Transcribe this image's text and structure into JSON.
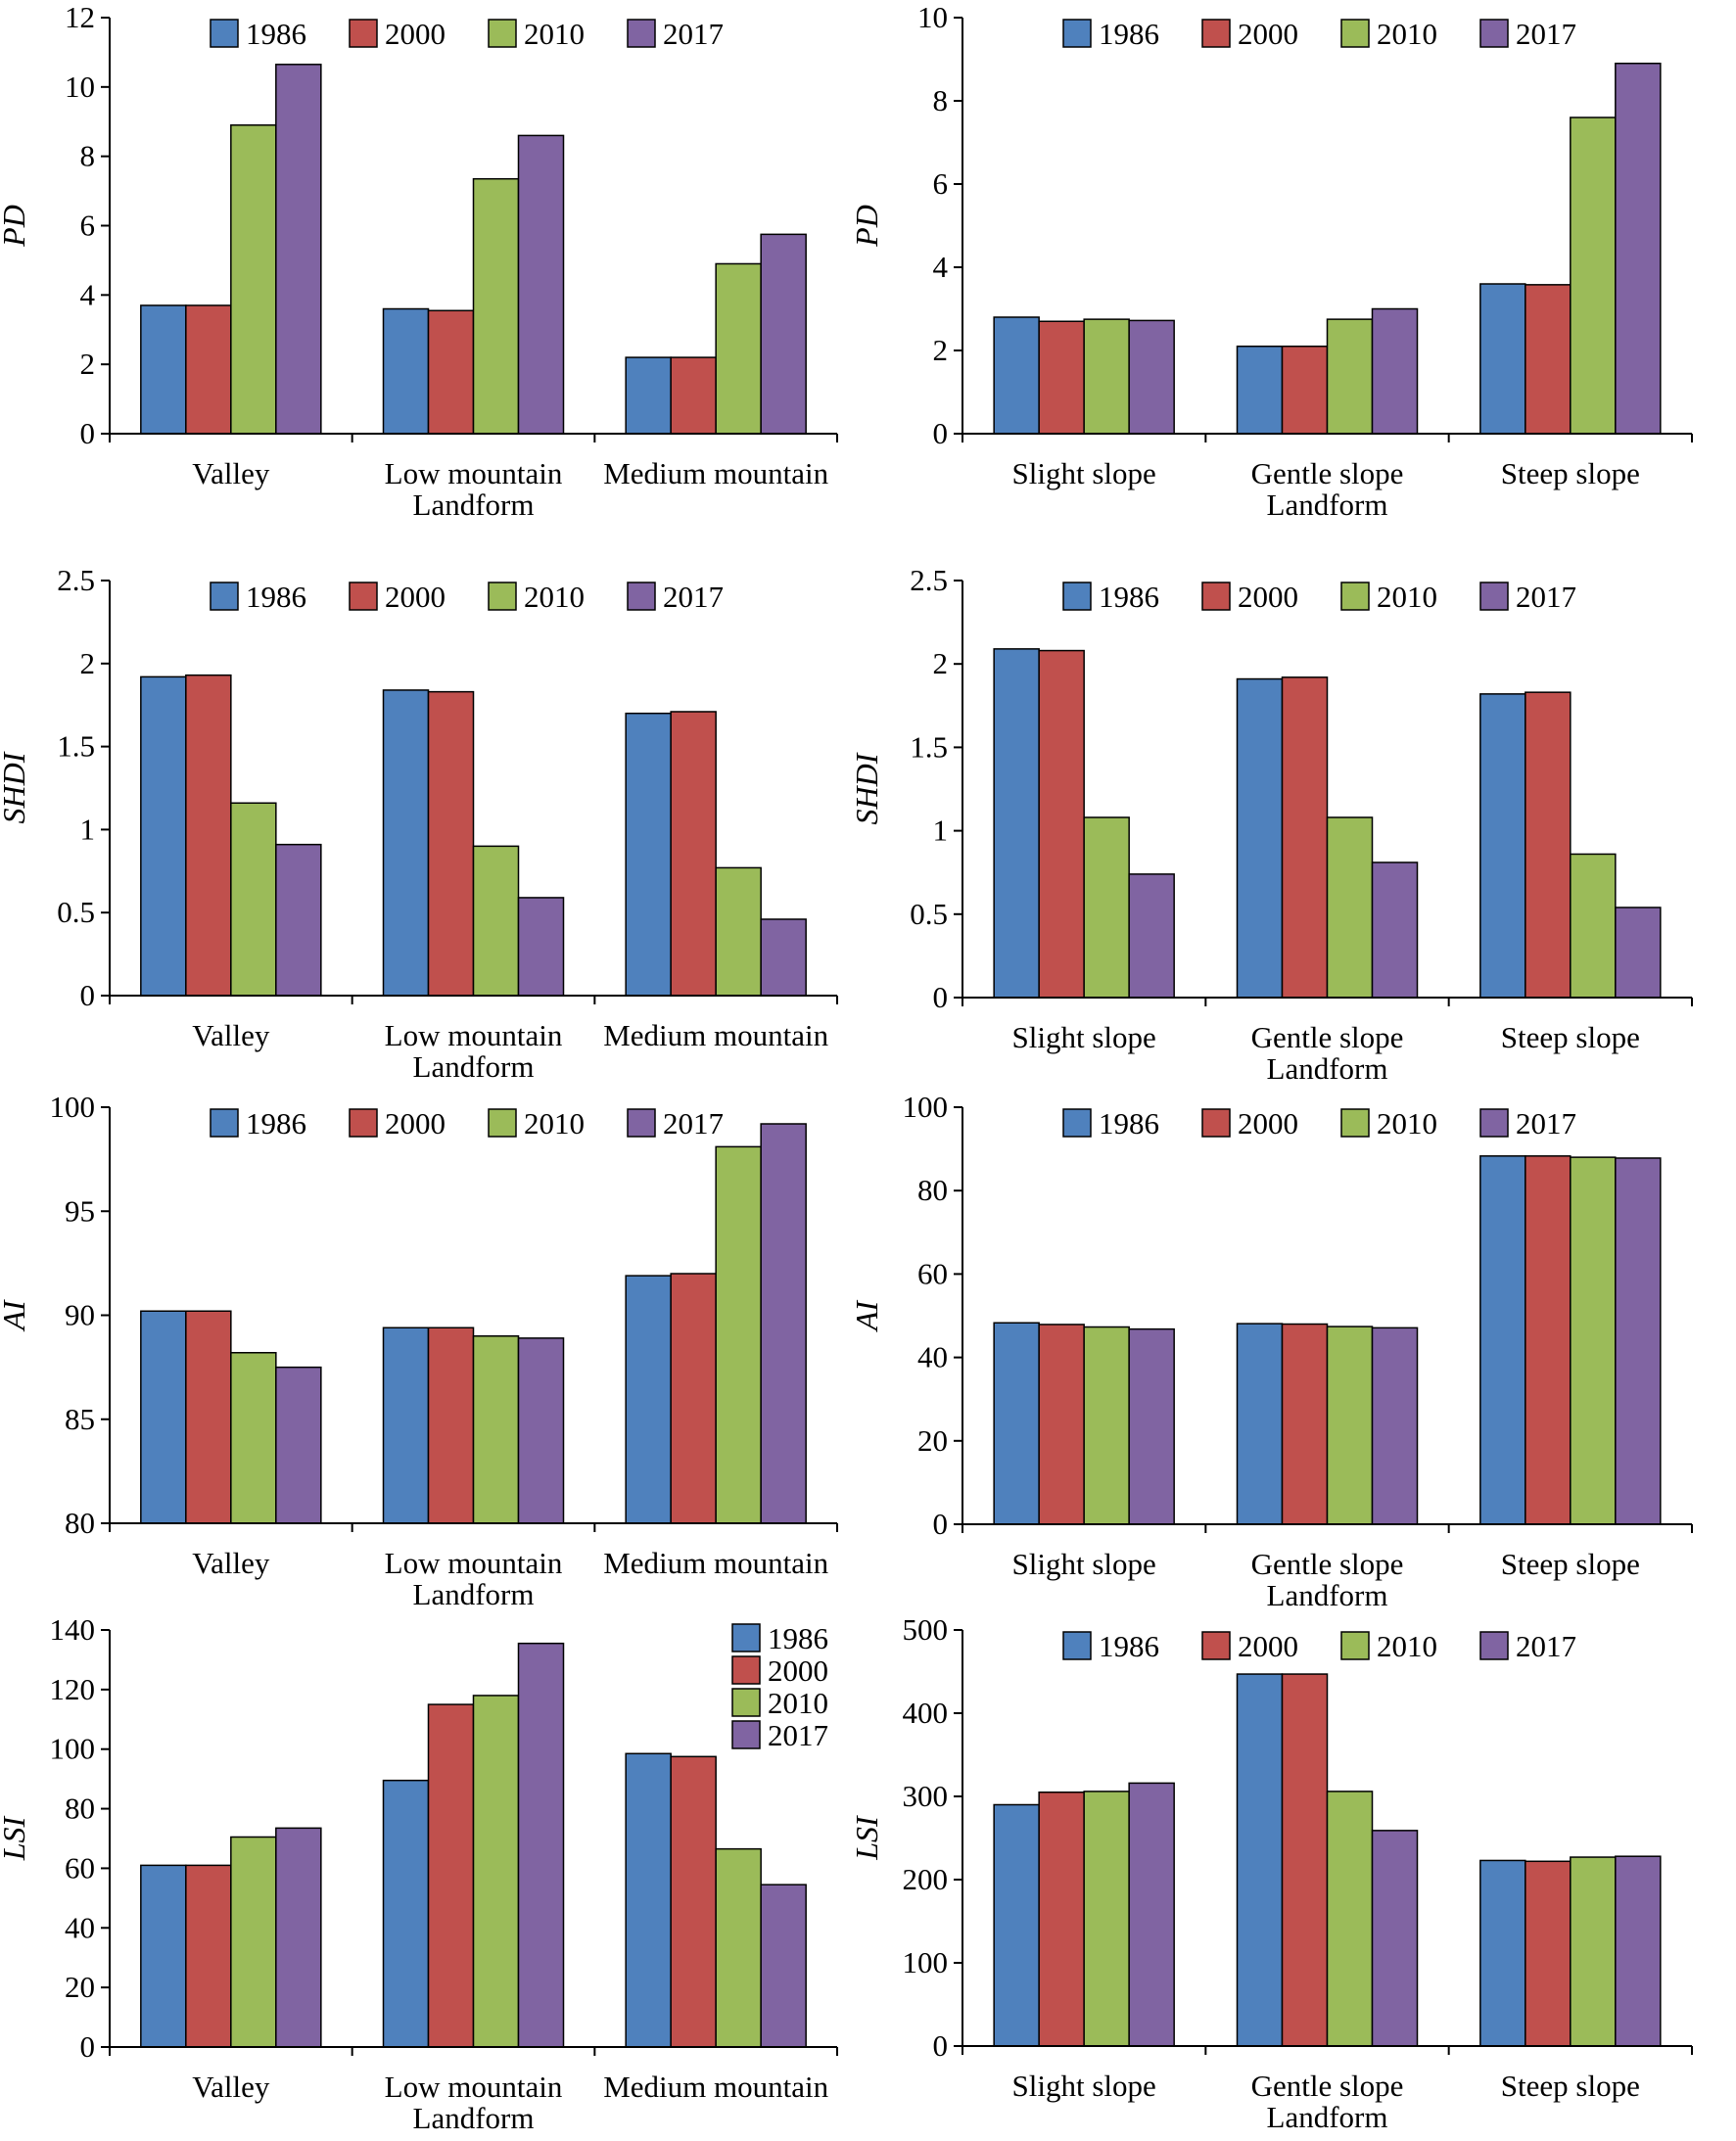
{
  "colors": [
    "#4F81BD",
    "#C0504D",
    "#9BBB59",
    "#8064A2"
  ],
  "chart_data": [
    {
      "type": "bar",
      "ylabel": "PD",
      "xlabel": "Landform",
      "categories": [
        "Valley",
        "Low mountain",
        "Medium mountain"
      ],
      "ylim": [
        0,
        12
      ],
      "yticks": [
        "0",
        "2",
        "4",
        "6",
        "8",
        "10",
        "12"
      ],
      "legend": "top",
      "series": [
        {
          "name": "1986",
          "values": [
            3.7,
            3.6,
            2.2
          ]
        },
        {
          "name": "2000",
          "values": [
            3.7,
            3.55,
            2.2
          ]
        },
        {
          "name": "2010",
          "values": [
            8.9,
            7.35,
            4.9
          ]
        },
        {
          "name": "2017",
          "values": [
            10.65,
            8.6,
            5.75
          ]
        }
      ]
    },
    {
      "type": "bar",
      "ylabel": "PD",
      "xlabel": "Landform",
      "categories": [
        "Slight slope",
        "Gentle slope",
        "Steep slope"
      ],
      "ylim": [
        0,
        10
      ],
      "yticks": [
        "0",
        "2",
        "4",
        "6",
        "8",
        "10"
      ],
      "legend": "top",
      "series": [
        {
          "name": "1986",
          "values": [
            2.8,
            2.1,
            3.6
          ]
        },
        {
          "name": "2000",
          "values": [
            2.7,
            2.1,
            3.58
          ]
        },
        {
          "name": "2010",
          "values": [
            2.75,
            2.75,
            7.6
          ]
        },
        {
          "name": "2017",
          "values": [
            2.72,
            3.0,
            8.9
          ]
        }
      ]
    },
    {
      "type": "bar",
      "ylabel": "SHDI",
      "xlabel": "Landform",
      "categories": [
        "Valley",
        "Low mountain",
        "Medium mountain"
      ],
      "ylim": [
        0,
        2.5
      ],
      "yticks": [
        "0",
        "0.5",
        "1",
        "1.5",
        "2",
        "2.5"
      ],
      "legend": "top",
      "series": [
        {
          "name": "1986",
          "values": [
            1.92,
            1.84,
            1.7
          ]
        },
        {
          "name": "2000",
          "values": [
            1.93,
            1.83,
            1.71
          ]
        },
        {
          "name": "2010",
          "values": [
            1.16,
            0.9,
            0.77
          ]
        },
        {
          "name": "2017",
          "values": [
            0.91,
            0.59,
            0.46
          ]
        }
      ]
    },
    {
      "type": "bar",
      "ylabel": "SHDI",
      "xlabel": "Landform",
      "categories": [
        "Slight slope",
        "Gentle slope",
        "Steep slope"
      ],
      "ylim": [
        0,
        2.5
      ],
      "yticks": [
        "0",
        "0.5",
        "1",
        "1.5",
        "2",
        "2.5"
      ],
      "legend": "top",
      "series": [
        {
          "name": "1986",
          "values": [
            2.09,
            1.91,
            1.82
          ]
        },
        {
          "name": "2000",
          "values": [
            2.08,
            1.92,
            1.83
          ]
        },
        {
          "name": "2010",
          "values": [
            1.08,
            1.08,
            0.86
          ]
        },
        {
          "name": "2017",
          "values": [
            0.74,
            0.81,
            0.54
          ]
        }
      ]
    },
    {
      "type": "bar",
      "ylabel": "AI",
      "xlabel": "Landform",
      "categories": [
        "Valley",
        "Low mountain",
        "Medium mountain"
      ],
      "ylim": [
        80,
        100
      ],
      "yticks": [
        "80",
        "85",
        "90",
        "95",
        "100"
      ],
      "legend": "top",
      "series": [
        {
          "name": "1986",
          "values": [
            90.2,
            89.4,
            91.9
          ]
        },
        {
          "name": "2000",
          "values": [
            90.2,
            89.4,
            92.0
          ]
        },
        {
          "name": "2010",
          "values": [
            88.2,
            89.0,
            98.1
          ]
        },
        {
          "name": "2017",
          "values": [
            87.5,
            88.9,
            99.2
          ]
        }
      ]
    },
    {
      "type": "bar",
      "ylabel": "AI",
      "xlabel": "Landform",
      "categories": [
        "Slight slope",
        "Gentle slope",
        "Steep slope"
      ],
      "ylim": [
        0,
        100
      ],
      "yticks": [
        "0",
        "20",
        "40",
        "60",
        "80",
        "100"
      ],
      "legend": "top",
      "series": [
        {
          "name": "1986",
          "values": [
            48.3,
            48.1,
            88.3
          ]
        },
        {
          "name": "2000",
          "values": [
            47.9,
            48.0,
            88.3
          ]
        },
        {
          "name": "2010",
          "values": [
            47.3,
            47.4,
            88.0
          ]
        },
        {
          "name": "2017",
          "values": [
            46.8,
            47.1,
            87.8
          ]
        }
      ]
    },
    {
      "type": "bar",
      "ylabel": "LSI",
      "xlabel": "Landform",
      "categories": [
        "Valley",
        "Low mountain",
        "Medium mountain"
      ],
      "ylim": [
        0,
        140
      ],
      "yticks": [
        "0",
        "20",
        "40",
        "60",
        "80",
        "100",
        "120",
        "140"
      ],
      "legend": "top-right",
      "series": [
        {
          "name": "1986",
          "values": [
            61,
            89.5,
            98.5
          ]
        },
        {
          "name": "2000",
          "values": [
            61,
            115,
            97.5
          ]
        },
        {
          "name": "2010",
          "values": [
            70.5,
            118,
            66.5
          ]
        },
        {
          "name": "2017",
          "values": [
            73.5,
            135.5,
            54.5
          ]
        }
      ]
    },
    {
      "type": "bar",
      "ylabel": "LSI",
      "xlabel": "Landform",
      "categories": [
        "Slight slope",
        "Gentle slope",
        "Steep slope"
      ],
      "ylim": [
        0,
        500
      ],
      "yticks": [
        "0",
        "100",
        "200",
        "300",
        "400",
        "500"
      ],
      "legend": "top",
      "series": [
        {
          "name": "1986",
          "values": [
            290,
            447,
            223
          ]
        },
        {
          "name": "2000",
          "values": [
            305,
            447,
            222
          ]
        },
        {
          "name": "2010",
          "values": [
            306,
            306,
            227
          ]
        },
        {
          "name": "2017",
          "values": [
            316,
            259,
            228
          ]
        }
      ]
    }
  ]
}
